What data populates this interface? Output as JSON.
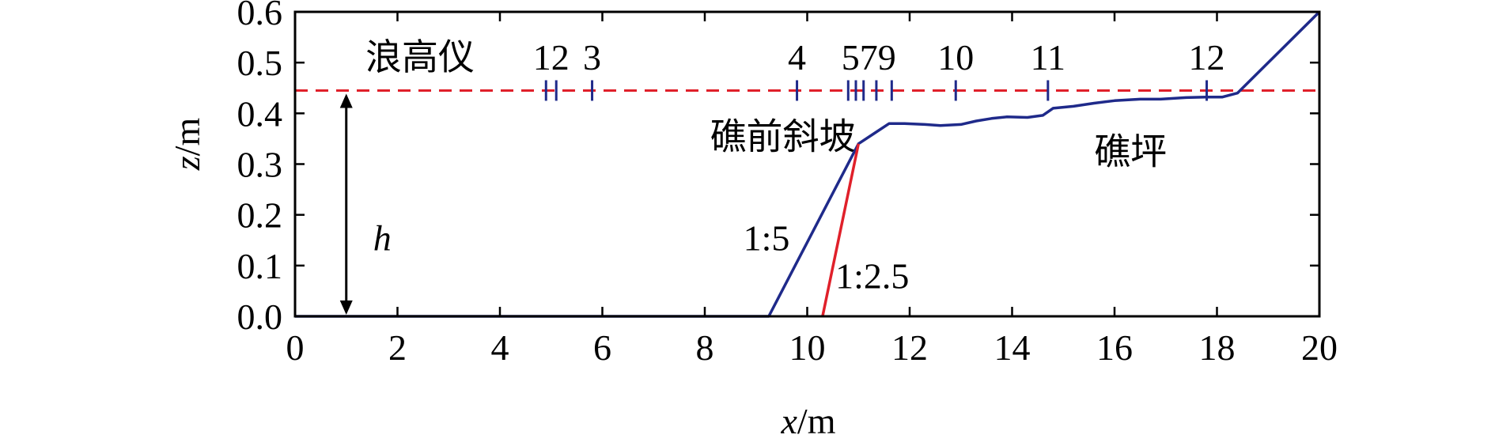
{
  "chart_data": {
    "type": "line",
    "xlabel": {
      "var": "x",
      "unit": "/m"
    },
    "ylabel": {
      "var": "z",
      "unit": "/m"
    },
    "xlim": [
      0,
      20
    ],
    "ylim": [
      0,
      0.6
    ],
    "x_ticks": [
      "0",
      "2",
      "4",
      "6",
      "8",
      "10",
      "12",
      "14",
      "16",
      "18",
      "20"
    ],
    "y_ticks": [
      "0.0",
      "0.1",
      "0.2",
      "0.3",
      "0.4",
      "0.5",
      "0.6"
    ],
    "series": [
      {
        "color": "#1f2a8a",
        "points": [
          [
            0,
            0
          ],
          [
            9.25,
            0
          ],
          [
            11.0,
            0.34
          ],
          [
            11.3,
            0.36
          ],
          [
            11.6,
            0.38
          ],
          [
            11.9,
            0.38
          ],
          [
            12.3,
            0.378
          ],
          [
            12.6,
            0.376
          ],
          [
            13.0,
            0.378
          ],
          [
            13.3,
            0.385
          ],
          [
            13.6,
            0.39
          ],
          [
            13.9,
            0.393
          ],
          [
            14.3,
            0.392
          ],
          [
            14.6,
            0.396
          ],
          [
            14.8,
            0.41
          ],
          [
            15.2,
            0.414
          ],
          [
            15.6,
            0.42
          ],
          [
            16.0,
            0.425
          ],
          [
            16.5,
            0.428
          ],
          [
            16.9,
            0.428
          ],
          [
            17.4,
            0.431
          ],
          [
            17.8,
            0.432
          ],
          [
            18.1,
            0.432
          ],
          [
            18.4,
            0.44
          ],
          [
            20,
            0.6
          ]
        ]
      },
      {
        "color": "#e0202a",
        "points": [
          [
            10.3,
            0
          ],
          [
            11.0,
            0.34
          ]
        ]
      }
    ],
    "water_level": {
      "y": 0.445,
      "color": "#e0202a",
      "style": "dashed"
    },
    "gauges": {
      "label": "浪高仪",
      "positions": [
        4.9,
        5.1,
        5.8,
        9.8,
        10.8,
        10.95,
        11.1,
        11.35,
        11.65,
        12.9,
        14.7,
        17.8
      ],
      "numbers": [
        {
          "text": "12",
          "x": 5.0
        },
        {
          "text": "3",
          "x": 5.8
        },
        {
          "text": "4",
          "x": 9.8
        },
        {
          "text": "579",
          "x": 11.2
        },
        {
          "text": "10",
          "x": 12.9
        },
        {
          "text": "11",
          "x": 14.7
        },
        {
          "text": "12",
          "x": 17.8
        }
      ]
    },
    "depth_arrow": {
      "x": 1.0,
      "y_bottom": 0,
      "y_top": 0.445,
      "label": "h"
    },
    "annotations": [
      {
        "text": "礁前斜坡",
        "x": 8.1,
        "y": 0.33,
        "cjk": true
      },
      {
        "text": "礁坪",
        "x": 15.6,
        "y": 0.3,
        "cjk": true
      },
      {
        "text": "1:5",
        "x": 8.75,
        "y": 0.13,
        "cjk": false
      },
      {
        "text": "1:2.5",
        "x": 10.55,
        "y": 0.055,
        "cjk": false
      }
    ]
  }
}
